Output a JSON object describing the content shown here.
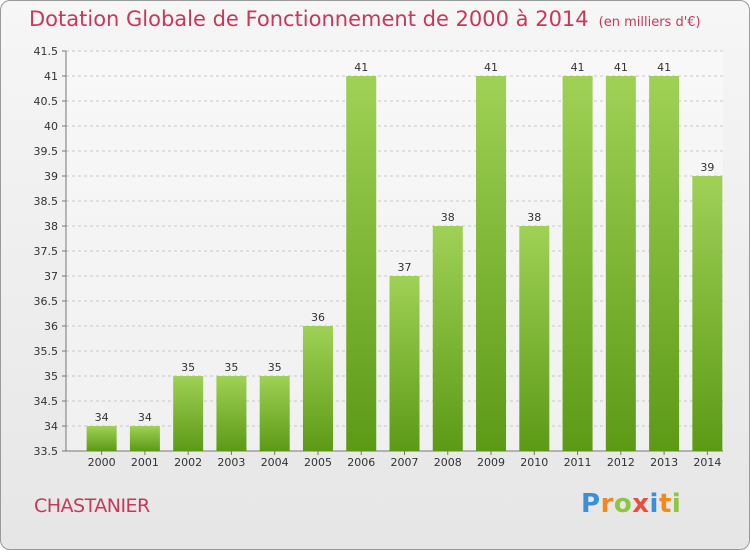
{
  "header": {
    "title": "Dotation Globale de Fonctionnement de 2000 à 2014",
    "unit": "(en milliers d'€)"
  },
  "footer": {
    "town": "CHASTANIER",
    "brand": "Proxiti",
    "brand_colors": [
      "#3a8fd6",
      "#f08a1c",
      "#8dc63f",
      "#e84e3c",
      "#3a8fd6",
      "#f08a1c",
      "#8dc63f"
    ]
  },
  "chart_data": {
    "type": "bar",
    "title": "Dotation Globale de Fonctionnement de 2000 à 2014",
    "subtitle": "(en milliers d'€)",
    "categories": [
      "2000",
      "2001",
      "2002",
      "2003",
      "2004",
      "2005",
      "2006",
      "2007",
      "2008",
      "2009",
      "2010",
      "2011",
      "2012",
      "2013",
      "2014"
    ],
    "values": [
      34,
      34,
      35,
      35,
      35,
      36,
      41,
      37,
      38,
      41,
      38,
      41,
      41,
      41,
      39
    ],
    "data_labels": [
      "34",
      "34",
      "35",
      "35",
      "35",
      "36",
      "41",
      "37",
      "38",
      "41",
      "38",
      "41",
      "41",
      "41",
      "39"
    ],
    "y_ticks": [
      "33.5",
      "34",
      "34.5",
      "35",
      "35.5",
      "36",
      "36.5",
      "37",
      "37.5",
      "38",
      "38.5",
      "39",
      "39.5",
      "40",
      "40.5",
      "41",
      "41.5"
    ],
    "ylim": [
      33.5,
      41.5
    ],
    "grid": true,
    "bar_color_top": "#9fd155",
    "bar_color_bottom": "#5c9a16",
    "xlabel": "",
    "ylabel": ""
  }
}
